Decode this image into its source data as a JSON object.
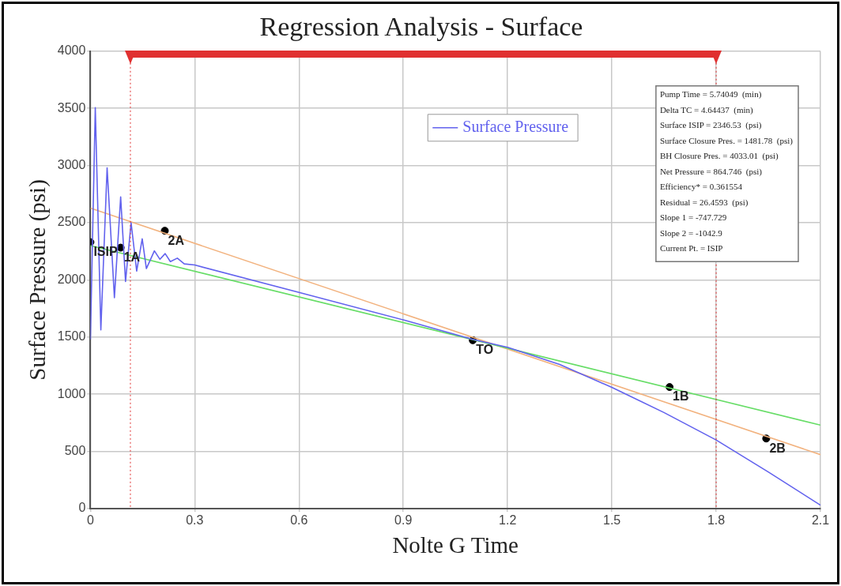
{
  "chart_data": {
    "type": "line",
    "title": "Regression Analysis - Surface",
    "xlabel": "Nolte G Time",
    "ylabel": "Surface Pressure (psi)",
    "xlim": [
      0,
      2.1
    ],
    "xticks": [
      0,
      0.3,
      0.6,
      0.9,
      1.2,
      1.5,
      1.8,
      2.1
    ],
    "ylim": [
      0,
      4000
    ],
    "yticks": [
      0,
      500,
      1000,
      1500,
      2000,
      2500,
      3000,
      3500,
      4000
    ],
    "grid": true,
    "legend": "top",
    "line_style": "solid",
    "series": [
      {
        "name": "Surface Pressure",
        "color": "#6262ee",
        "marker": "none",
        "x": [
          0,
          0.014,
          0.03,
          0.048,
          0.069,
          0.087,
          0.101,
          0.117,
          0.133,
          0.149,
          0.161,
          0.184,
          0.2,
          0.215,
          0.23,
          0.25,
          0.27,
          0.3,
          0.6,
          0.9,
          1.1,
          1.2,
          1.35,
          1.5,
          1.65,
          1.8,
          1.95,
          2.1
        ],
        "values": [
          1480,
          3507,
          1563,
          2979,
          1845,
          2725,
          1986,
          2500,
          2077,
          2359,
          2099,
          2254,
          2180,
          2230,
          2160,
          2190,
          2140,
          2130,
          1890,
          1650,
          1480,
          1410,
          1260,
          1060,
          840,
          600,
          320,
          30
        ]
      },
      {
        "type": "line",
        "color": "#66dd66",
        "marker": "none",
        "x": [
          0,
          2.1
        ],
        "values": [
          2300,
          730
        ]
      },
      {
        "type": "line",
        "color": "#f2b27e",
        "marker": "none",
        "x": [
          0,
          2.1
        ],
        "values": [
          2627,
          472
        ]
      },
      {
        "type": "scatter",
        "color": "#000000",
        "marker": "circle",
        "x": [
          0,
          0.087,
          0.214,
          1.1,
          1.666,
          1.944
        ],
        "values": [
          2330,
          2282,
          2430,
          1472,
          1063,
          613
        ]
      }
    ],
    "ref_lines": [
      {
        "axis": "x",
        "value": 0.115,
        "color": "#e03030",
        "line_style": "dotted"
      },
      {
        "axis": "x",
        "value": 1.8,
        "color": "#e03030",
        "line_style": "dotted"
      }
    ],
    "annotations": [
      {
        "text": "ISIP",
        "x": 0,
        "y": 2330
      },
      {
        "text": "1A",
        "x": 0.087,
        "y": 2282
      },
      {
        "text": "2A",
        "x": 0.214,
        "y": 2430
      },
      {
        "text": "TO",
        "x": 1.1,
        "y": 1472
      },
      {
        "text": "1B",
        "x": 1.666,
        "y": 1063
      },
      {
        "text": "2B",
        "x": 1.944,
        "y": 613
      },
      "Pump Time = 5.74049  (min)",
      "Delta TC = 4.64437  (min)",
      "Surface ISIP = 2346.53  (psi)",
      "Surface Closure Pres. = 1481.78  (psi)",
      "BH Closure Pres. = 4033.01  (psi)",
      "Net Pressure = 864.746  (psi)",
      "Efficiency* = 0.361554",
      "Residual = 26.4593  (psi)",
      "Slope 1 = -747.729",
      "Slope 2 = -1042.9",
      "Current Pt. = ISIP"
    ]
  }
}
